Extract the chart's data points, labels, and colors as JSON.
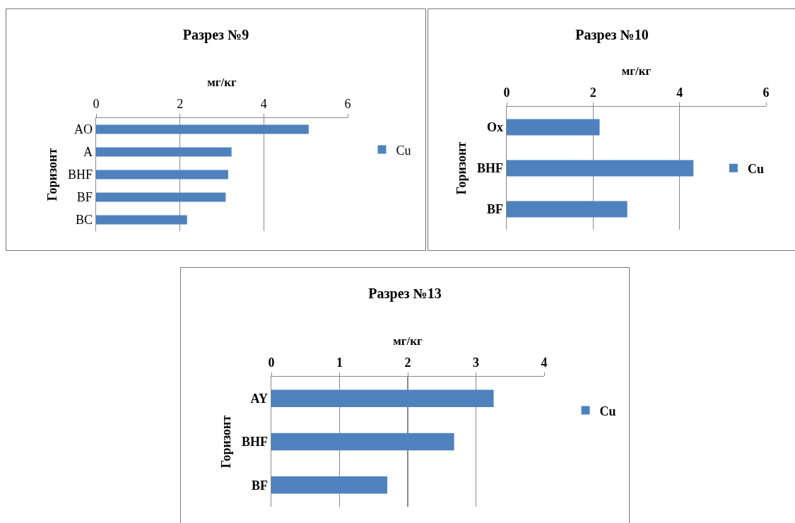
{
  "chart_data": [
    {
      "type": "bar",
      "orientation": "horizontal",
      "title": "Разрез №9",
      "xlabel": "мг/кг",
      "ylabel": "Горизонт",
      "categories": [
        "AO",
        "A",
        "BHF",
        "BF",
        "BC"
      ],
      "series": [
        {
          "name": "Cu",
          "color": "#4f81bd",
          "values": [
            5.07,
            3.23,
            3.15,
            3.09,
            2.17
          ]
        }
      ],
      "xlim": [
        0,
        6
      ],
      "xticks": [
        0,
        2,
        4,
        6
      ],
      "grid": "x",
      "legend": "right"
    },
    {
      "type": "bar",
      "orientation": "horizontal",
      "title": "Разрез №10",
      "xlabel": "мг/кг",
      "ylabel": "Горизонт",
      "categories": [
        "Ox",
        "BHF",
        "BF"
      ],
      "series": [
        {
          "name": "Cu",
          "color": "#4f81bd",
          "values": [
            2.15,
            4.32,
            2.79
          ]
        }
      ],
      "xlim": [
        0,
        6
      ],
      "xticks": [
        0,
        2,
        4,
        6
      ],
      "grid": "x",
      "legend": "right"
    },
    {
      "type": "bar",
      "orientation": "horizontal",
      "title": "Разрез №13",
      "xlabel": "мг/кг",
      "ylabel": "Горизонт",
      "categories": [
        "AY",
        "BHF",
        "BF"
      ],
      "series": [
        {
          "name": "Cu",
          "color": "#4f81bd",
          "values": [
            3.26,
            2.68,
            1.7
          ]
        }
      ],
      "xlim": [
        0,
        4
      ],
      "xticks": [
        0,
        1,
        2,
        3,
        4
      ],
      "grid": "x",
      "legend": "right"
    }
  ]
}
